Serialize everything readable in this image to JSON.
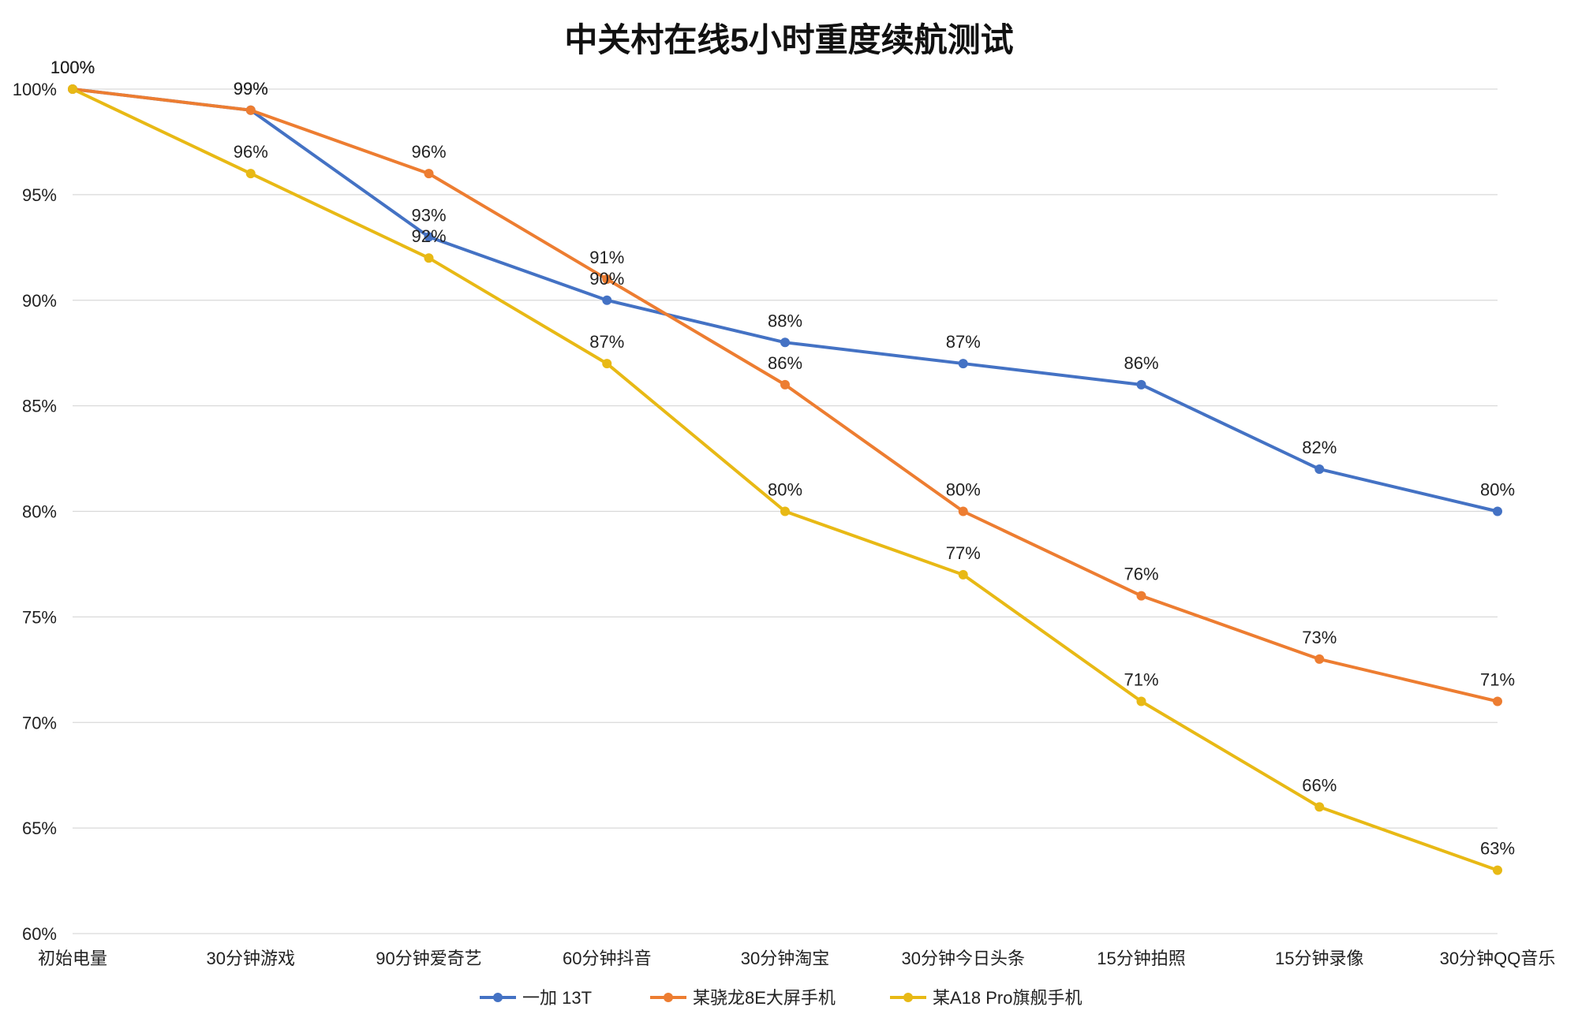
{
  "chart_data": {
    "type": "line",
    "title": "中关村在线5小时重度续航测试",
    "xlabel": "",
    "ylabel": "",
    "categories": [
      "初始电量",
      "30分钟游戏",
      "90分钟爱奇艺",
      "60分钟抖音",
      "30分钟淘宝",
      "30分钟今日头条",
      "15分钟拍照",
      "15分钟录像",
      "30分钟QQ音乐"
    ],
    "ylim": [
      60,
      100
    ],
    "yticks": [
      60,
      65,
      70,
      75,
      80,
      85,
      90,
      95,
      100
    ],
    "ytick_labels": [
      "60%",
      "65%",
      "70%",
      "75%",
      "80%",
      "85%",
      "90%",
      "95%",
      "100%"
    ],
    "value_suffix": "%",
    "grid": true,
    "legend_position": "bottom",
    "series": [
      {
        "name": "一加 13T",
        "color": "#4472c4",
        "values": [
          100,
          99,
          93,
          90,
          88,
          87,
          86,
          82,
          80
        ]
      },
      {
        "name": "某骁龙8E大屏手机",
        "color": "#ed7d31",
        "values": [
          100,
          99,
          96,
          91,
          86,
          80,
          76,
          73,
          71
        ]
      },
      {
        "name": "某A18 Pro旗舰手机",
        "color": "#e8b915",
        "values": [
          100,
          96,
          92,
          87,
          80,
          77,
          71,
          66,
          63
        ]
      }
    ]
  }
}
